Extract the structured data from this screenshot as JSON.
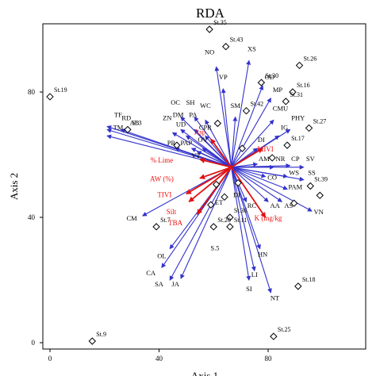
{
  "chart_data": {
    "type": "scatter",
    "subtype": "ordination-biplot",
    "title": "RDA",
    "xlabel": "Axis 1",
    "ylabel": "Axis 2",
    "xlim": [
      -2,
      100
    ],
    "ylim": [
      -1,
      101
    ],
    "x_ticks": [
      0,
      40,
      80
    ],
    "y_ticks": [
      0,
      40,
      80
    ],
    "grid": false,
    "center": [
      66.5,
      56
    ],
    "colors": {
      "species": "#3333cc",
      "env": "#e11111",
      "site": "#000000"
    },
    "sites": [
      {
        "label": "St.35",
        "x": 58.5,
        "y": 100
      },
      {
        "label": "St.43",
        "x": 64.5,
        "y": 94.5
      },
      {
        "label": "St.26",
        "x": 91.5,
        "y": 88.5
      },
      {
        "label": "St.30",
        "x": 77.5,
        "y": 83
      },
      {
        "label": "St.16",
        "x": 89,
        "y": 80
      },
      {
        "label": "St.19",
        "x": 0,
        "y": 78.5
      },
      {
        "label": "St.31",
        "x": 86.5,
        "y": 77
      },
      {
        "label": "St.42",
        "x": 72,
        "y": 74
      },
      {
        "label": "St.3",
        "x": 28.5,
        "y": 68
      },
      {
        "label": "St.27",
        "x": 95,
        "y": 68.5
      },
      {
        "label": "St.17",
        "x": 87,
        "y": 63
      },
      {
        "label": "St.39",
        "x": 95.5,
        "y": 50
      },
      {
        "label": "St.7",
        "x": 39,
        "y": 37
      },
      {
        "label": "St.36",
        "x": 66,
        "y": 40
      },
      {
        "label": "St.20",
        "x": 60,
        "y": 37
      },
      {
        "label": "St.11",
        "x": 66,
        "y": 37
      },
      {
        "label": "St.18",
        "x": 91,
        "y": 18
      },
      {
        "label": "St.25",
        "x": 82,
        "y": 2
      },
      {
        "label": "St.9",
        "x": 15.5,
        "y": 0.5
      }
    ],
    "extra_site_markers": [
      {
        "x": 46.5,
        "y": 63
      },
      {
        "x": 61.5,
        "y": 70
      },
      {
        "x": 70.5,
        "y": 62
      },
      {
        "x": 81.5,
        "y": 59
      },
      {
        "x": 59,
        "y": 44
      },
      {
        "x": 64,
        "y": 46.5
      },
      {
        "x": 61,
        "y": 50.5
      },
      {
        "x": 69,
        "y": 51
      },
      {
        "x": 89.5,
        "y": 44.5
      },
      {
        "x": 99,
        "y": 47
      }
    ],
    "species": [
      {
        "label": "TF",
        "x": 25,
        "y": 72
      },
      {
        "label": "RD",
        "x": 28,
        "y": 71
      },
      {
        "label": "AB",
        "x": 31,
        "y": 69.5
      },
      {
        "label": "TM",
        "x": 25,
        "y": 68
      },
      {
        "label": "ZN",
        "x": 43,
        "y": 71
      },
      {
        "label": "OC",
        "x": 46,
        "y": 76
      },
      {
        "label": "SH",
        "x": 51.5,
        "y": 76
      },
      {
        "label": "WC",
        "x": 57,
        "y": 75
      },
      {
        "label": "DM",
        "x": 47,
        "y": 72
      },
      {
        "label": "PA",
        "x": 52.5,
        "y": 72
      },
      {
        "label": "UD",
        "x": 48,
        "y": 69
      },
      {
        "label": "CPR",
        "x": 57,
        "y": 68
      },
      {
        "label": "PR",
        "x": 44.5,
        "y": 63
      },
      {
        "label": "PAP",
        "x": 50,
        "y": 63
      },
      {
        "label": "OV",
        "x": 56,
        "y": 64
      },
      {
        "label": "VT",
        "x": 53.5,
        "y": 59
      },
      {
        "label": "VP",
        "x": 63.5,
        "y": 84
      },
      {
        "label": "NO",
        "x": 58.5,
        "y": 92
      },
      {
        "label": "XS",
        "x": 74,
        "y": 93
      },
      {
        "label": "SM",
        "x": 68,
        "y": 75
      },
      {
        "label": "OD",
        "x": 80.5,
        "y": 84
      },
      {
        "label": "MP",
        "x": 83.5,
        "y": 80
      },
      {
        "label": "CMU",
        "x": 84.5,
        "y": 74
      },
      {
        "label": "PHY",
        "x": 91,
        "y": 71
      },
      {
        "label": "DI",
        "x": 77.5,
        "y": 64
      },
      {
        "label": "IG",
        "x": 86,
        "y": 68
      },
      {
        "label": "AM",
        "x": 78.5,
        "y": 58
      },
      {
        "label": "NR",
        "x": 84.5,
        "y": 58
      },
      {
        "label": "CP",
        "x": 90,
        "y": 58
      },
      {
        "label": "SV",
        "x": 95.5,
        "y": 58
      },
      {
        "label": "CO",
        "x": 81.5,
        "y": 52
      },
      {
        "label": "WS",
        "x": 89.5,
        "y": 53.5
      },
      {
        "label": "SS",
        "x": 96,
        "y": 53.5
      },
      {
        "label": "PAM",
        "x": 90,
        "y": 49
      },
      {
        "label": "AA",
        "x": 82.5,
        "y": 43
      },
      {
        "label": "AS",
        "x": 87.5,
        "y": 43
      },
      {
        "label": "RC",
        "x": 74,
        "y": 43
      },
      {
        "label": "VN",
        "x": 98.5,
        "y": 41
      },
      {
        "label": "CM",
        "x": 30,
        "y": 39
      },
      {
        "label": "OL",
        "x": 41,
        "y": 27
      },
      {
        "label": "CA",
        "x": 37,
        "y": 21.5
      },
      {
        "label": "SA",
        "x": 40,
        "y": 18
      },
      {
        "label": "JA",
        "x": 46,
        "y": 18
      },
      {
        "label": "SI",
        "x": 73,
        "y": 16.5
      },
      {
        "label": "LI",
        "x": 75,
        "y": 21
      },
      {
        "label": "HN",
        "x": 78,
        "y": 27.5
      },
      {
        "label": "NT",
        "x": 82.5,
        "y": 13.5
      },
      {
        "label": "ET",
        "x": 62,
        "y": 44
      },
      {
        "label": "DI",
        "x": 68.5,
        "y": 46.5
      },
      {
        "label": "S.5",
        "x": 60.5,
        "y": 29.5
      }
    ],
    "species_arrows": [
      {
        "x": 21,
        "y": 69
      },
      {
        "x": 21,
        "y": 68
      },
      {
        "x": 26,
        "y": 68
      },
      {
        "x": 21,
        "y": 66
      },
      {
        "x": 45,
        "y": 67
      },
      {
        "x": 48,
        "y": 72
      },
      {
        "x": 53,
        "y": 72
      },
      {
        "x": 57,
        "y": 71
      },
      {
        "x": 48,
        "y": 68
      },
      {
        "x": 53,
        "y": 68
      },
      {
        "x": 50,
        "y": 66
      },
      {
        "x": 57,
        "y": 66
      },
      {
        "x": 46,
        "y": 62
      },
      {
        "x": 52,
        "y": 62
      },
      {
        "x": 56,
        "y": 62
      },
      {
        "x": 54,
        "y": 61
      },
      {
        "x": 63.5,
        "y": 81
      },
      {
        "x": 61,
        "y": 88
      },
      {
        "x": 73,
        "y": 90
      },
      {
        "x": 68,
        "y": 72
      },
      {
        "x": 78,
        "y": 82
      },
      {
        "x": 81,
        "y": 78
      },
      {
        "x": 82,
        "y": 71
      },
      {
        "x": 88,
        "y": 68
      },
      {
        "x": 76,
        "y": 62
      },
      {
        "x": 84,
        "y": 66
      },
      {
        "x": 76,
        "y": 57
      },
      {
        "x": 82,
        "y": 56
      },
      {
        "x": 88,
        "y": 56.5
      },
      {
        "x": 93,
        "y": 56
      },
      {
        "x": 79,
        "y": 53
      },
      {
        "x": 87,
        "y": 53
      },
      {
        "x": 93,
        "y": 52
      },
      {
        "x": 87,
        "y": 49
      },
      {
        "x": 80,
        "y": 45
      },
      {
        "x": 85,
        "y": 45
      },
      {
        "x": 72,
        "y": 45
      },
      {
        "x": 96,
        "y": 42
      },
      {
        "x": 34,
        "y": 40.5
      },
      {
        "x": 44,
        "y": 30
      },
      {
        "x": 41,
        "y": 24
      },
      {
        "x": 44,
        "y": 20
      },
      {
        "x": 48,
        "y": 20.5
      },
      {
        "x": 73,
        "y": 20
      },
      {
        "x": 75,
        "y": 23
      },
      {
        "x": 77,
        "y": 30
      },
      {
        "x": 81,
        "y": 16
      }
    ],
    "env_vectors": [
      {
        "label": "Asp",
        "x": 59,
        "y": 65
      },
      {
        "label": "MIVI",
        "x": 78,
        "y": 62
      },
      {
        "label": "% Lime",
        "x": 55,
        "y": 58.5
      },
      {
        "label": "AW (%)",
        "x": 55,
        "y": 52.5
      },
      {
        "label": "TIVI",
        "x": 50,
        "y": 47.5
      },
      {
        "label": "Silt",
        "x": 51,
        "y": 45
      },
      {
        "label": "TBA",
        "x": 54,
        "y": 41
      },
      {
        "label": "K (mg/kg",
        "x": 79,
        "y": 40
      }
    ],
    "env_label_positions": [
      {
        "x": 55,
        "y": 66.5
      },
      {
        "x": 79,
        "y": 61
      },
      {
        "x": 41,
        "y": 57.5
      },
      {
        "x": 41,
        "y": 51.5
      },
      {
        "x": 42,
        "y": 46.5
      },
      {
        "x": 44.5,
        "y": 41
      },
      {
        "x": 46,
        "y": 37.5
      },
      {
        "x": 80,
        "y": 39
      }
    ]
  }
}
